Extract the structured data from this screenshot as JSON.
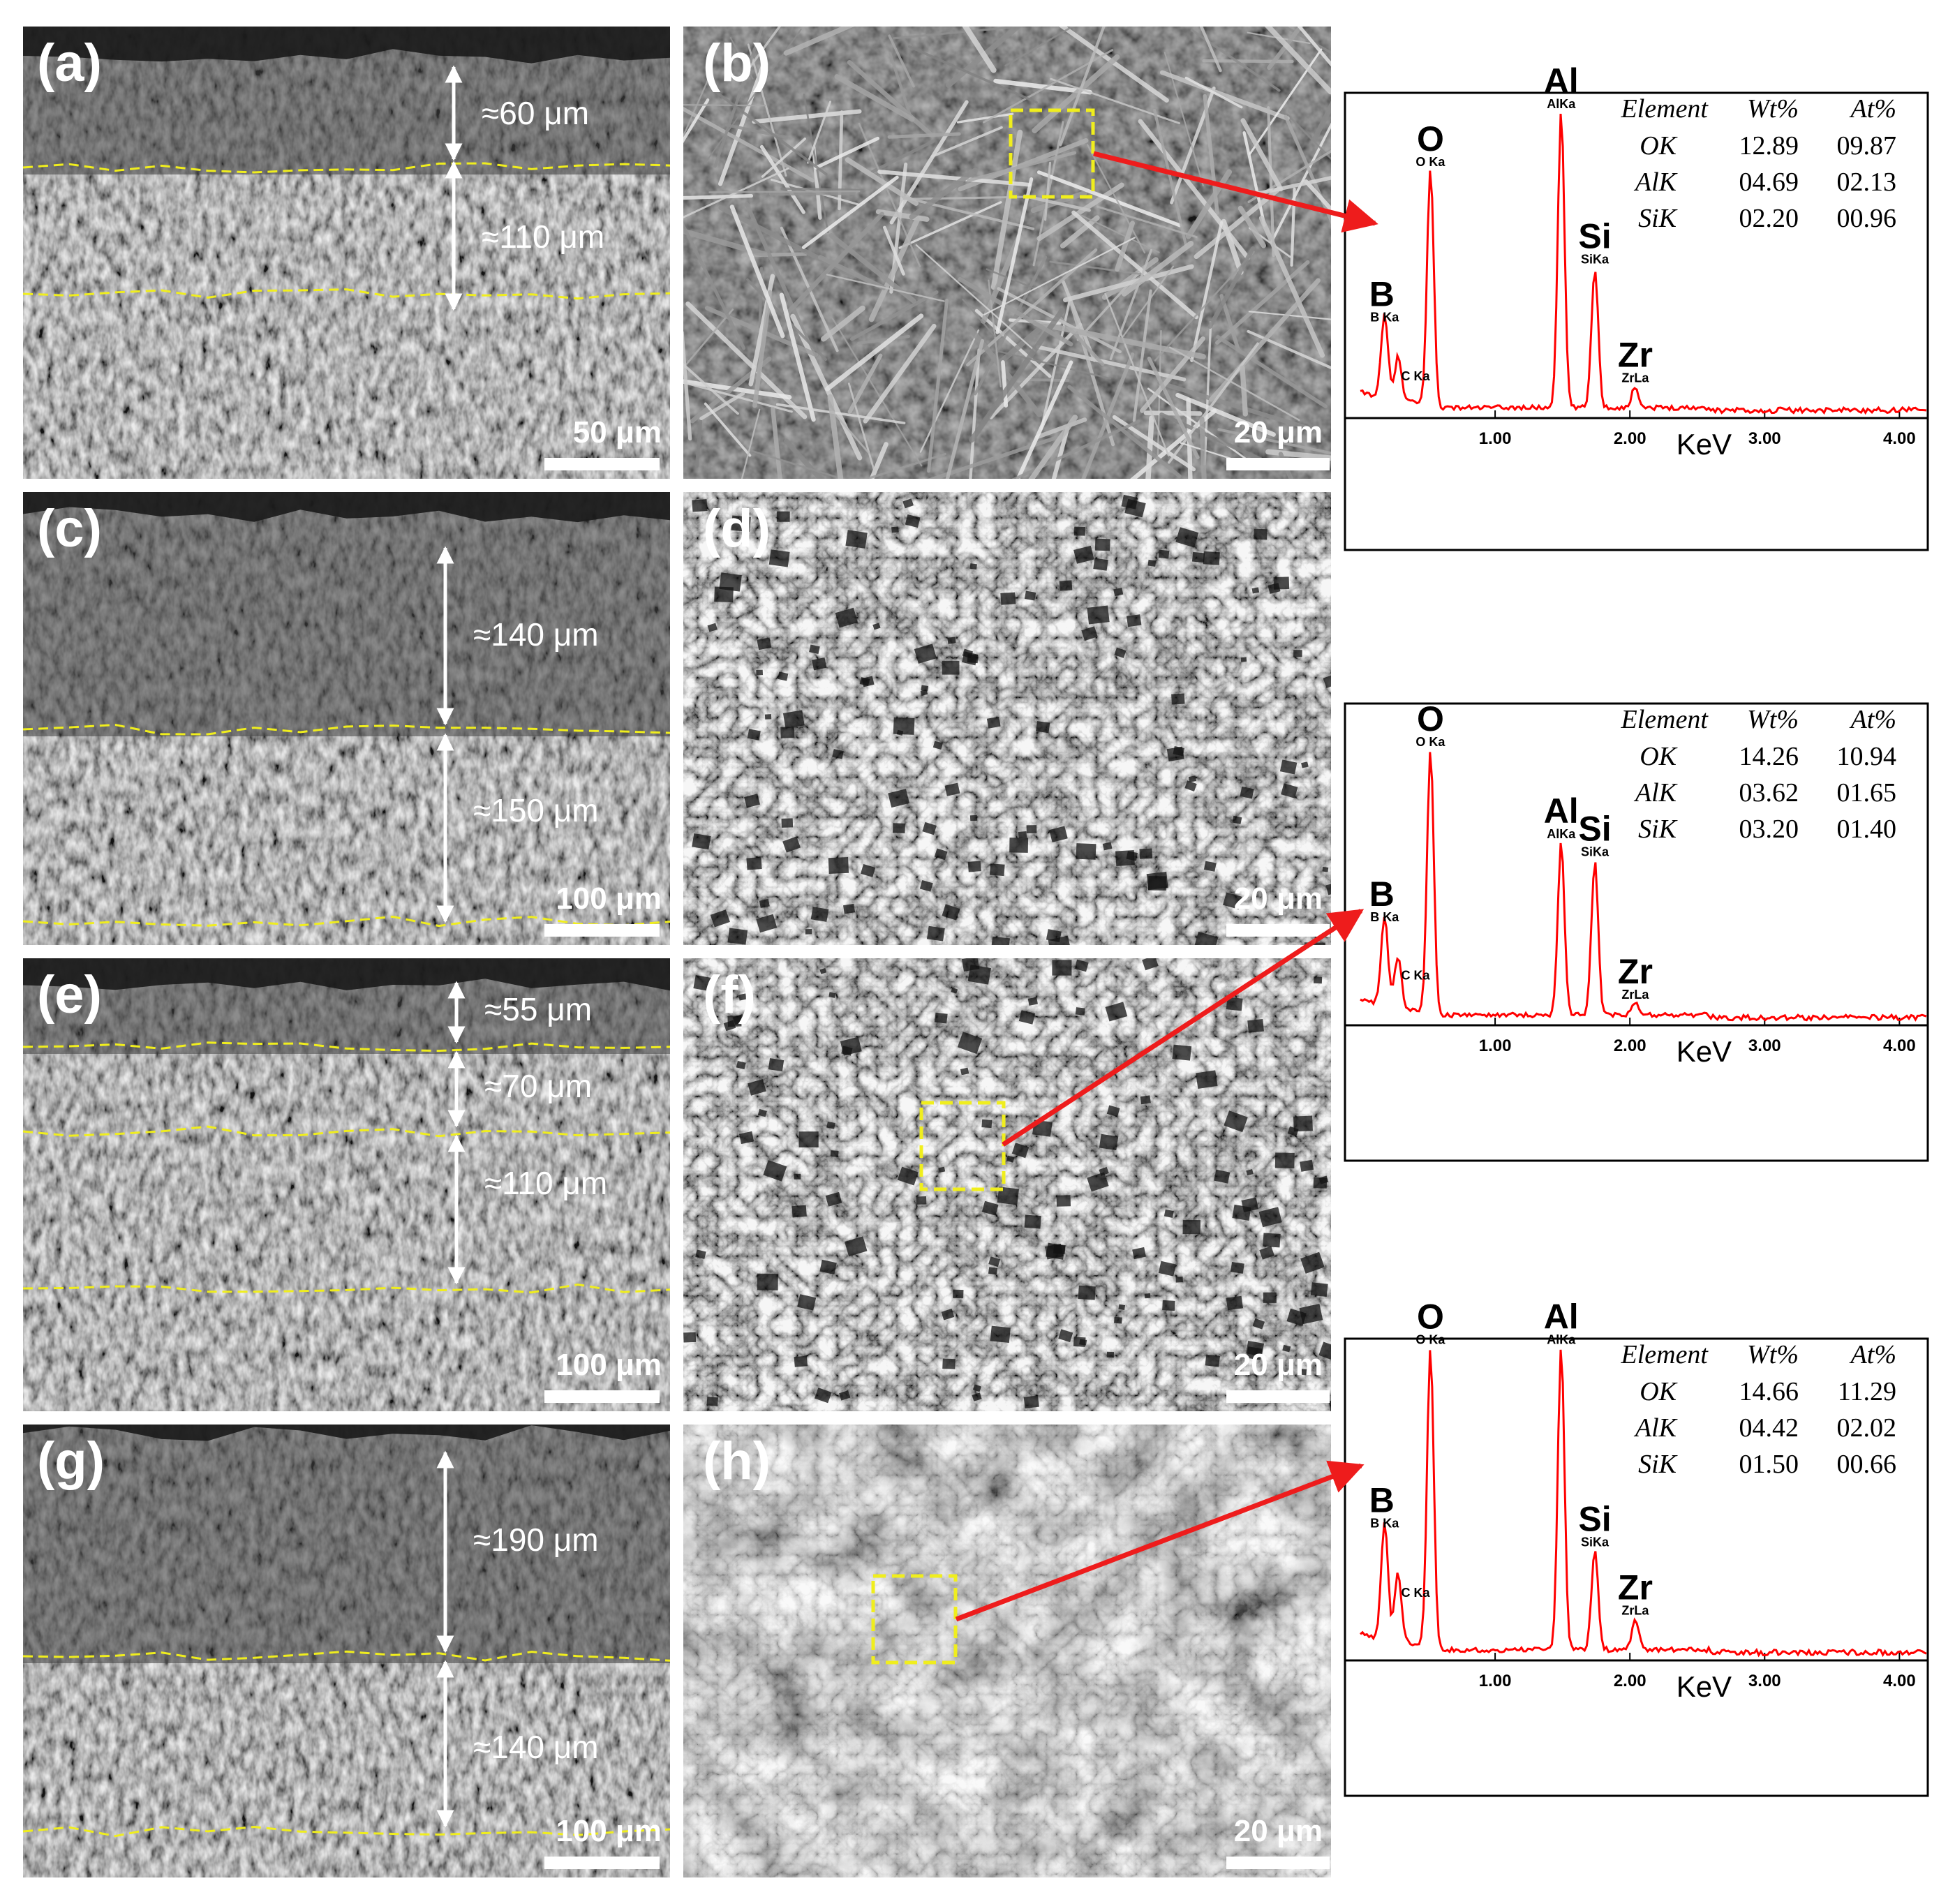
{
  "figure": {
    "rows": [
      {
        "left": {
          "label": "(a)",
          "layers": [
            {
              "text": "≈60 μm"
            },
            {
              "text": "≈110 μm"
            }
          ],
          "boundaries": 2,
          "scale_bar": "50 μm"
        },
        "right": {
          "label": "(b)",
          "scale_bar": "20 μm",
          "texture": "needles",
          "has_box": true
        }
      },
      {
        "left": {
          "label": "(c)",
          "layers": [
            {
              "text": "≈140 μm"
            },
            {
              "text": "≈150 μm"
            }
          ],
          "boundaries": 2,
          "scale_bar": "100 μm"
        },
        "right": {
          "label": "(d)",
          "scale_bar": "20 μm",
          "texture": "crystals",
          "has_box": false
        }
      },
      {
        "left": {
          "label": "(e)",
          "layers": [
            {
              "text": "≈55 μm"
            },
            {
              "text": "≈70 μm"
            },
            {
              "text": "≈110 μm"
            }
          ],
          "boundaries": 3,
          "scale_bar": "100 μm"
        },
        "right": {
          "label": "(f)",
          "scale_bar": "20 μm",
          "texture": "crystals",
          "has_box": true
        }
      },
      {
        "left": {
          "label": "(g)",
          "layers": [
            {
              "text": "≈190 μm"
            },
            {
              "text": "≈140 μm"
            }
          ],
          "boundaries": 2,
          "scale_bar": "100 μm"
        },
        "right": {
          "label": "(h)",
          "scale_bar": "20 μm",
          "texture": "nodular",
          "has_box": true
        }
      }
    ],
    "eds_spectra": [
      {
        "peaks": [
          {
            "element": "B",
            "line": "B Ka",
            "energy": 0.18,
            "height": 0.27
          },
          {
            "element": "",
            "line": "C Ka",
            "energy": 0.28,
            "height": 0.14
          },
          {
            "element": "O",
            "line": "O Ka",
            "energy": 0.52,
            "height": 0.78
          },
          {
            "element": "Al",
            "line": "AlKa",
            "energy": 1.49,
            "height": 0.97
          },
          {
            "element": "Si",
            "line": "SiKa",
            "energy": 1.74,
            "height": 0.46
          },
          {
            "element": "Zr",
            "line": "ZrLa",
            "energy": 2.04,
            "height": 0.07
          }
        ],
        "table": {
          "headers": [
            "Element",
            "Wt%",
            "At%"
          ],
          "rows": [
            [
              "OK",
              "12.89",
              "09.87"
            ],
            [
              "AlK",
              "04.69",
              "02.13"
            ],
            [
              "SiK",
              "02.20",
              "00.96"
            ]
          ]
        }
      },
      {
        "peaks": [
          {
            "element": "B",
            "line": "B Ka",
            "energy": 0.18,
            "height": 0.3
          },
          {
            "element": "",
            "line": "C Ka",
            "energy": 0.28,
            "height": 0.17
          },
          {
            "element": "O",
            "line": "O Ka",
            "energy": 0.52,
            "height": 0.89
          },
          {
            "element": "Al",
            "line": "AlKa",
            "energy": 1.49,
            "height": 0.58
          },
          {
            "element": "Si",
            "line": "SiKa",
            "energy": 1.74,
            "height": 0.52
          },
          {
            "element": "Zr",
            "line": "ZrLa",
            "energy": 2.04,
            "height": 0.04
          }
        ],
        "table": {
          "headers": [
            "Element",
            "Wt%",
            "At%"
          ],
          "rows": [
            [
              "OK",
              "14.26",
              "10.94"
            ],
            [
              "AlK",
              "03.62",
              "01.65"
            ],
            [
              "SiK",
              "03.20",
              "01.40"
            ]
          ]
        }
      },
      {
        "peaks": [
          {
            "element": "B",
            "line": "B Ka",
            "energy": 0.18,
            "height": 0.38
          },
          {
            "element": "",
            "line": "C Ka",
            "energy": 0.28,
            "height": 0.22
          },
          {
            "element": "O",
            "line": "O Ka",
            "energy": 0.52,
            "height": 0.97
          },
          {
            "element": "Al",
            "line": "AlKa",
            "energy": 1.49,
            "height": 0.97
          },
          {
            "element": "Si",
            "line": "SiKa",
            "energy": 1.74,
            "height": 0.32
          },
          {
            "element": "Zr",
            "line": "ZrLa",
            "energy": 2.04,
            "height": 0.1
          }
        ],
        "table": {
          "headers": [
            "Element",
            "Wt%",
            "At%"
          ],
          "rows": [
            [
              "OK",
              "14.66",
              "11.29"
            ],
            [
              "AlK",
              "04.42",
              "02.02"
            ],
            [
              "SiK",
              "01.50",
              "00.66"
            ]
          ]
        }
      }
    ],
    "eds_axis": {
      "ticks": [
        "1.00",
        "2.00",
        "3.00",
        "4.00"
      ],
      "xlabel": "KeV",
      "xlim": [
        0,
        4.2
      ]
    },
    "colors": {
      "boundary": "#f0ee1d",
      "spectrum": "#ff0000",
      "arrow": "#ee1c1c"
    }
  }
}
